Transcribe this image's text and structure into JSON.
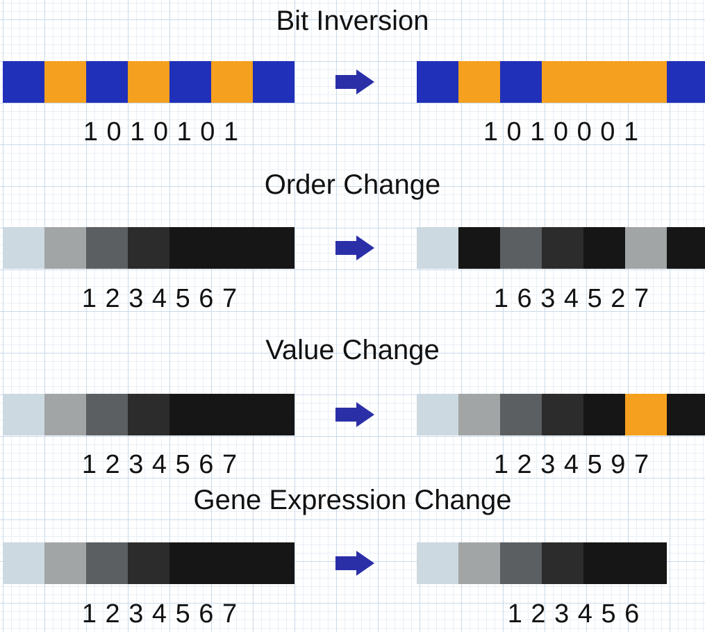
{
  "palette": {
    "blue": "#2030b8",
    "orange": "#f5a01e",
    "light": "#cdd9e0",
    "midgray": "#a2a5a5",
    "darkgray": "#5b5f62",
    "charcoal": "#2c2c2c",
    "black": "#161616",
    "arrow": "#2a2fa8"
  },
  "rows": [
    {
      "title": "Bit Inversion",
      "before": {
        "label": "1 0 1 0 1 0 1",
        "cells": [
          "blue",
          "orange",
          "blue",
          "orange",
          "blue",
          "orange",
          "blue"
        ]
      },
      "after": {
        "label": "1 0 1 0 0 0 1",
        "cells": [
          "blue",
          "orange",
          "blue",
          "orange",
          "orange",
          "orange",
          "blue"
        ]
      }
    },
    {
      "title": "Order Change",
      "before": {
        "label": "1 2 3 4 5 6 7",
        "cells": [
          "light",
          "midgray",
          "darkgray",
          "charcoal",
          "black",
          "black",
          "black"
        ]
      },
      "after": {
        "label": "1 6 3 4 5 2 7",
        "cells": [
          "light",
          "black",
          "darkgray",
          "charcoal",
          "black",
          "midgray",
          "black"
        ]
      }
    },
    {
      "title": "Value Change",
      "before": {
        "label": "1 2 3 4 5 6 7",
        "cells": [
          "light",
          "midgray",
          "darkgray",
          "charcoal",
          "black",
          "black",
          "black"
        ]
      },
      "after": {
        "label": "1 2 3 4 5 9 7",
        "cells": [
          "light",
          "midgray",
          "darkgray",
          "charcoal",
          "black",
          "orange",
          "black"
        ]
      }
    },
    {
      "title": "Gene Expression Change",
      "before": {
        "label": "1 2 3 4 5 6 7",
        "cells": [
          "light",
          "midgray",
          "darkgray",
          "charcoal",
          "black",
          "black",
          "black"
        ]
      },
      "after": {
        "label": "1 2 3 4 5 6",
        "cells": [
          "light",
          "midgray",
          "darkgray",
          "charcoal",
          "black",
          "black"
        ]
      }
    }
  ]
}
